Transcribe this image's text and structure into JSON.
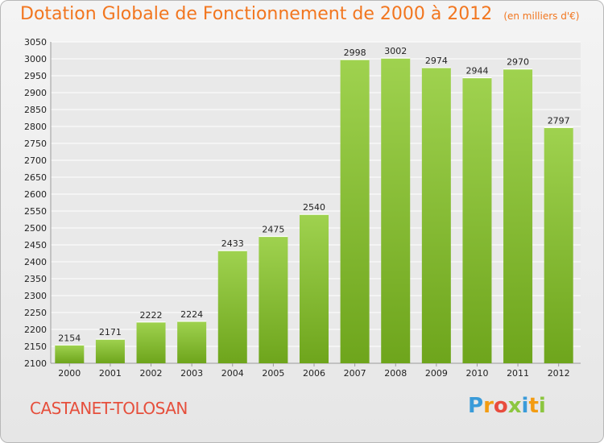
{
  "chart_data": {
    "type": "bar",
    "title": "Dotation Globale de Fonctionnement de 2000 à 2012",
    "unit_note": "(en milliers d'€)",
    "categories": [
      "2000",
      "2001",
      "2002",
      "2003",
      "2004",
      "2005",
      "2006",
      "2007",
      "2008",
      "2009",
      "2010",
      "2011",
      "2012"
    ],
    "values": [
      2154,
      2171,
      2222,
      2224,
      2433,
      2475,
      2540,
      2998,
      3002,
      2974,
      2944,
      2970,
      2797
    ],
    "ylim": [
      2100,
      3050
    ],
    "ytick_step": 50,
    "grid": true,
    "bar_color": "#8cc63f"
  },
  "footer": {
    "city": "CASTANET-TOLOSAN",
    "logo": {
      "letters": [
        "P",
        "r",
        "o",
        "x",
        "i",
        "t",
        "i"
      ],
      "colors": [
        "#3a9bd9",
        "#f39c12",
        "#e84c3d",
        "#8cc63f",
        "#3a9bd9",
        "#f39c12",
        "#8cc63f"
      ]
    }
  }
}
